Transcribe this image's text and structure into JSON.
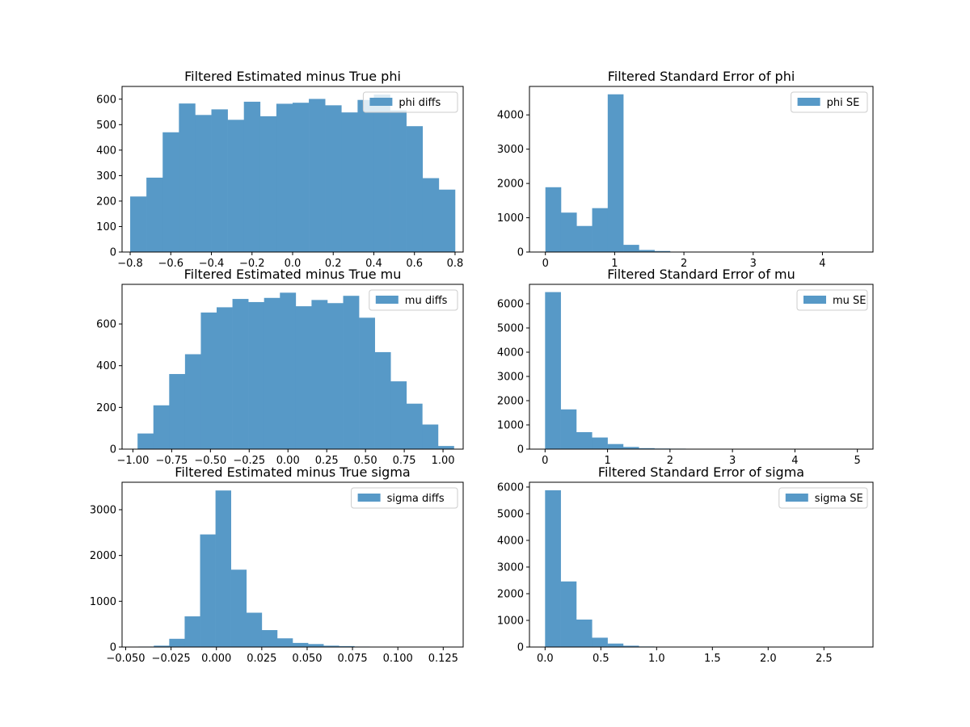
{
  "chart_data": [
    {
      "type": "bar",
      "title": "Filtered Estimated minus True phi",
      "legend": "phi diffs",
      "legend_loc": "upper right",
      "color": "#5799c7",
      "xlim": [
        -0.84,
        0.84
      ],
      "ylim": [
        0,
        650
      ],
      "xticks": [
        -0.8,
        -0.6,
        -0.4,
        -0.2,
        0.0,
        0.2,
        0.4,
        0.6,
        0.8
      ],
      "xtick_labels": [
        "−0.8",
        "−0.6",
        "−0.4",
        "−0.2",
        "0.0",
        "0.2",
        "0.4",
        "0.6",
        "0.8"
      ],
      "yticks": [
        0,
        100,
        200,
        300,
        400,
        500,
        600
      ],
      "ytick_labels": [
        "0",
        "100",
        "200",
        "300",
        "400",
        "500",
        "600"
      ],
      "bin_start": -0.8,
      "bin_end": 0.8,
      "values": [
        218,
        292,
        470,
        583,
        538,
        560,
        519,
        590,
        533,
        582,
        586,
        601,
        576,
        548,
        597,
        618,
        556,
        494,
        290,
        245
      ]
    },
    {
      "type": "bar",
      "title": "Filtered Standard Error of phi",
      "legend": "phi SE",
      "legend_loc": "upper right",
      "color": "#5799c7",
      "xlim": [
        -0.23,
        4.73
      ],
      "ylim": [
        0,
        4830
      ],
      "xticks": [
        0,
        1,
        2,
        3,
        4
      ],
      "xtick_labels": [
        "0",
        "1",
        "2",
        "3",
        "4"
      ],
      "yticks": [
        0,
        1000,
        2000,
        3000,
        4000
      ],
      "ytick_labels": [
        "0",
        "1000",
        "2000",
        "3000",
        "4000"
      ],
      "bin_start": 0.0,
      "bin_end": 4.5,
      "values": [
        1890,
        1150,
        760,
        1280,
        4600,
        210,
        60,
        30,
        10,
        6,
        5,
        4,
        3,
        3,
        2,
        2,
        1,
        1,
        1,
        1
      ]
    },
    {
      "type": "bar",
      "title": "Filtered Estimated minus True mu",
      "legend": "mu diffs",
      "legend_loc": "upper right",
      "color": "#5799c7",
      "xlim": [
        -1.07,
        1.13
      ],
      "ylim": [
        0,
        790
      ],
      "xticks": [
        -1.0,
        -0.75,
        -0.5,
        -0.25,
        0.0,
        0.25,
        0.5,
        0.75,
        1.0
      ],
      "xtick_labels": [
        "−1.00",
        "−0.75",
        "−0.50",
        "−0.25",
        "0.00",
        "0.25",
        "0.50",
        "0.75",
        "1.00"
      ],
      "yticks": [
        0,
        200,
        400,
        600
      ],
      "ytick_labels": [
        "0",
        "200",
        "400",
        "600"
      ],
      "bin_start": -0.97,
      "bin_end": 1.07,
      "values": [
        75,
        210,
        360,
        455,
        655,
        680,
        720,
        705,
        725,
        750,
        685,
        715,
        700,
        735,
        630,
        465,
        325,
        218,
        118,
        15
      ]
    },
    {
      "type": "bar",
      "title": "Filtered Standard Error of mu",
      "legend": "mu SE",
      "legend_loc": "upper right",
      "color": "#5799c7",
      "xlim": [
        -0.25,
        5.25
      ],
      "ylim": [
        0,
        6800
      ],
      "xticks": [
        0,
        1,
        2,
        3,
        4,
        5
      ],
      "xtick_labels": [
        "0",
        "1",
        "2",
        "3",
        "4",
        "5"
      ],
      "yticks": [
        0,
        1000,
        2000,
        3000,
        4000,
        5000,
        6000
      ],
      "ytick_labels": [
        "0",
        "1000",
        "2000",
        "3000",
        "4000",
        "5000",
        "6000"
      ],
      "bin_start": 0.0,
      "bin_end": 5.0,
      "values": [
        6480,
        1640,
        700,
        480,
        210,
        90,
        40,
        25,
        20,
        15,
        8,
        5,
        4,
        3,
        2,
        2,
        1,
        1,
        1,
        1
      ]
    },
    {
      "type": "bar",
      "title": "Filtered Estimated minus True sigma",
      "legend": "sigma diffs",
      "legend_loc": "upper right",
      "color": "#5799c7",
      "xlim": [
        -0.052,
        0.136
      ],
      "ylim": [
        0,
        3600
      ],
      "xticks": [
        -0.05,
        -0.025,
        0.0,
        0.025,
        0.05,
        0.075,
        0.1,
        0.125
      ],
      "xtick_labels": [
        "−0.050",
        "−0.025",
        "0.000",
        "0.025",
        "0.050",
        "0.075",
        "0.100",
        "0.125"
      ],
      "yticks": [
        0,
        1000,
        2000,
        3000
      ],
      "ytick_labels": [
        "0",
        "1000",
        "2000",
        "3000"
      ],
      "bin_start": -0.043,
      "bin_end": 0.127,
      "values": [
        10,
        30,
        180,
        670,
        2460,
        3420,
        1690,
        750,
        370,
        190,
        90,
        65,
        30,
        20,
        10,
        6,
        4,
        3,
        2,
        1
      ]
    },
    {
      "type": "bar",
      "title": "Filtered Standard Error of sigma",
      "legend": "sigma SE",
      "legend_loc": "upper right",
      "color": "#5799c7",
      "xlim": [
        -0.14,
        2.94
      ],
      "ylim": [
        0,
        6180
      ],
      "xticks": [
        0.0,
        0.5,
        1.0,
        1.5,
        2.0,
        2.5
      ],
      "xtick_labels": [
        "0.0",
        "0.5",
        "1.0",
        "1.5",
        "2.0",
        "2.5"
      ],
      "yticks": [
        0,
        1000,
        2000,
        3000,
        4000,
        5000,
        6000
      ],
      "ytick_labels": [
        "0",
        "1000",
        "2000",
        "3000",
        "4000",
        "5000",
        "6000"
      ],
      "bin_start": 0.0,
      "bin_end": 2.8,
      "values": [
        5880,
        2460,
        1030,
        350,
        130,
        50,
        20,
        12,
        8,
        5,
        3,
        2,
        2,
        1,
        1,
        1,
        1,
        1,
        1,
        1
      ]
    }
  ]
}
